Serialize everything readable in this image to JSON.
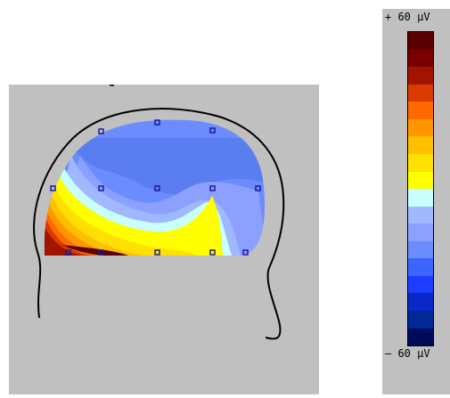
{
  "background": "#c0c0c0",
  "electrode_color": "#1a1aa0",
  "head_outline_color": "#000000",
  "scale": {
    "max_label": "+ 60 µV",
    "min_label": "– 60 µV",
    "colors": [
      "#5a0000",
      "#7a0000",
      "#a01400",
      "#d83c00",
      "#ff6a00",
      "#ff9600",
      "#ffbe00",
      "#ffe000",
      "#ffff00",
      "#c8ffff",
      "#a0b8ff",
      "#8ca0ff",
      "#6a8cff",
      "#3c64ff",
      "#1e3cff",
      "#0a28c8",
      "#002896",
      "#000a5a"
    ]
  },
  "electrodes_count_shown": 13
}
